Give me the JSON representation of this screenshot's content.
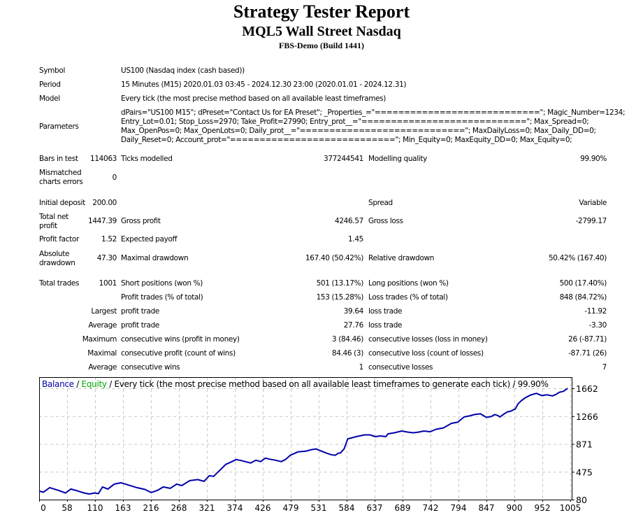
{
  "header": {
    "title": "Strategy Tester Report",
    "subtitle": "MQL5 Wall Street Nasdaq",
    "server": "FBS-Demo (Build 1441)"
  },
  "settings": {
    "symbol_label": "Symbol",
    "symbol_value": "US100 (Nasdaq index (cash based))",
    "period_label": "Period",
    "period_value": "15 Minutes (M15) 2020.01.03 03:45 - 2024.12.30 23:00 (2020.01.01 - 2024.12.31)",
    "model_label": "Model",
    "model_value": "Every tick (the most precise method based on all available least timeframes)",
    "parameters_label": "Parameters",
    "parameters_lines": [
      "dPairs=\"US100 M15\"; dPreset=\"Contact Us for EA Preset\"; _Properties_=\"============================\"; Magic_Number=1234;",
      "Entry_Lot=0.01; Stop_Loss=2970; Take_Profit=27990; Entry_prot__=\"============================\"; Max_Spread=0;",
      "Max_OpenPos=0; Max_OpenLots=0; Daily_prot__=\"============================\"; MaxDailyLoss=0; Max_Daily_DD=0;",
      "Daily_Reset=0; Account_prot=\"============================\"; Min_Equity=0; MaxEquity_DD=0; Max_Equity=0;"
    ]
  },
  "stats": {
    "bars_label": "Bars in test",
    "bars_value": "114063",
    "ticks_label": "Ticks modelled",
    "ticks_value": "377244541",
    "quality_label": "Modelling quality",
    "quality_value": "99.90%",
    "mismatch_label": "Mismatched charts errors",
    "mismatch_value": "0",
    "deposit_label": "Initial deposit",
    "deposit_value": "200.00",
    "spread_label": "Spread",
    "spread_value": "Variable",
    "netprofit_label": "Total net profit",
    "netprofit_value": "1447.39",
    "grossprofit_label": "Gross profit",
    "grossprofit_value": "4246.57",
    "grossloss_label": "Gross loss",
    "grossloss_value": "-2799.17",
    "pf_label": "Profit factor",
    "pf_value": "1.52",
    "payoff_label": "Expected payoff",
    "payoff_value": "1.45",
    "absdd_label": "Absolute drawdown",
    "absdd_value": "47.30",
    "maxdd_label": "Maximal drawdown",
    "maxdd_value": "167.40 (50.42%)",
    "reldd_label": "Relative drawdown",
    "reldd_value": "50.42% (167.40)",
    "trades_label": "Total trades",
    "trades_value": "1001",
    "short_label": "Short positions (won %)",
    "short_value": "501 (13.17%)",
    "long_label": "Long positions (won %)",
    "long_value": "500 (17.40%)",
    "profittrades_label": "Profit trades (% of total)",
    "profittrades_value": "153 (15.28%)",
    "losstrades_label": "Loss trades (% of total)",
    "losstrades_value": "848 (84.72%)",
    "largest_prefix": "Largest",
    "largest_profit_label": "profit trade",
    "largest_profit_value": "39.64",
    "largest_loss_label": "loss trade",
    "largest_loss_value": "-11.92",
    "average_prefix": "Average",
    "average_profit_label": "profit trade",
    "average_profit_value": "27.76",
    "average_loss_label": "loss trade",
    "average_loss_value": "-3.30",
    "maximum_prefix": "Maximum",
    "maxwins_label": "consecutive wins (profit in money)",
    "maxwins_value": "3 (84.46)",
    "maxlosses_label": "consecutive losses (loss in money)",
    "maxlosses_value": "26 (-87.71)",
    "maximal_prefix": "Maximal",
    "maxprofit_label": "consecutive profit (count of wins)",
    "maxprofit_value": "84.46 (3)",
    "maxloss_label": "consecutive loss (count of losses)",
    "maxloss_value": "-87.71 (26)",
    "avgcons_prefix": "Average",
    "avgwins_label": "consecutive wins",
    "avgwins_value": "1",
    "avglosses_label": "consecutive losses",
    "avglosses_value": "7"
  },
  "chart_data": {
    "type": "line",
    "title_parts": {
      "balance": "Balance",
      "sep1": " / ",
      "equity": "Equity",
      "rest": " / Every tick (the most precise method based on all available least timeframes to generate each tick) / 99.90%"
    },
    "colors": {
      "balance": "#0000aa",
      "equity": "#00aa00",
      "grid": "#c8c8c8",
      "axis": "#000000"
    },
    "xlabel": "",
    "ylabel": "",
    "xlim": [
      0,
      1001
    ],
    "ylim": [
      80,
      1662
    ],
    "x_ticks": [
      "0",
      "58",
      "110",
      "163",
      "216",
      "268",
      "321",
      "374",
      "426",
      "479",
      "531",
      "584",
      "637",
      "689",
      "742",
      "794",
      "847",
      "900",
      "952",
      "1005"
    ],
    "y_ticks": [
      "1662",
      "1266",
      "871",
      "475",
      "80"
    ],
    "grid": true,
    "series": [
      {
        "name": "Balance",
        "x": [
          0,
          8,
          20,
          35,
          50,
          60,
          72,
          85,
          95,
          105,
          112,
          120,
          130,
          142,
          155,
          170,
          185,
          200,
          212,
          225,
          235,
          248,
          260,
          270,
          285,
          300,
          312,
          322,
          330,
          338,
          345,
          353,
          362,
          373,
          385,
          400,
          410,
          419,
          428,
          436,
          447,
          458,
          466,
          475,
          490,
          505,
          515,
          524,
          534,
          544,
          552,
          560,
          566,
          570,
          577,
          584,
          592,
          600,
          616,
          626,
          636,
          646,
          656,
          660,
          672,
          686,
          697,
          708,
          718,
          728,
          740,
          751,
          765,
          780,
          792,
          804,
          814,
          824,
          835,
          846,
          855,
          862,
          868,
          872,
          878,
          885,
          893,
          901,
          906,
          912,
          920,
          931,
          941,
          951,
          961,
          971,
          978,
          984,
          992,
          1000
        ],
        "y": [
          200,
          185,
          250,
          215,
          175,
          230,
          205,
          175,
          160,
          175,
          165,
          260,
          230,
          300,
          320,
          285,
          250,
          225,
          180,
          215,
          260,
          240,
          300,
          280,
          350,
          365,
          340,
          420,
          410,
          470,
          520,
          580,
          610,
          650,
          630,
          600,
          640,
          620,
          670,
          655,
          640,
          620,
          650,
          710,
          760,
          770,
          790,
          800,
          770,
          740,
          720,
          710,
          740,
          743,
          800,
          945,
          960,
          975,
          1000,
          1000,
          975,
          985,
          975,
          1015,
          1030,
          1055,
          1040,
          1030,
          1040,
          1055,
          1045,
          1080,
          1100,
          1165,
          1180,
          1255,
          1270,
          1290,
          1300,
          1250,
          1260,
          1290,
          1275,
          1255,
          1290,
          1325,
          1340,
          1370,
          1440,
          1485,
          1530,
          1570,
          1590,
          1560,
          1570,
          1555,
          1575,
          1605,
          1620,
          1662
        ]
      }
    ]
  }
}
